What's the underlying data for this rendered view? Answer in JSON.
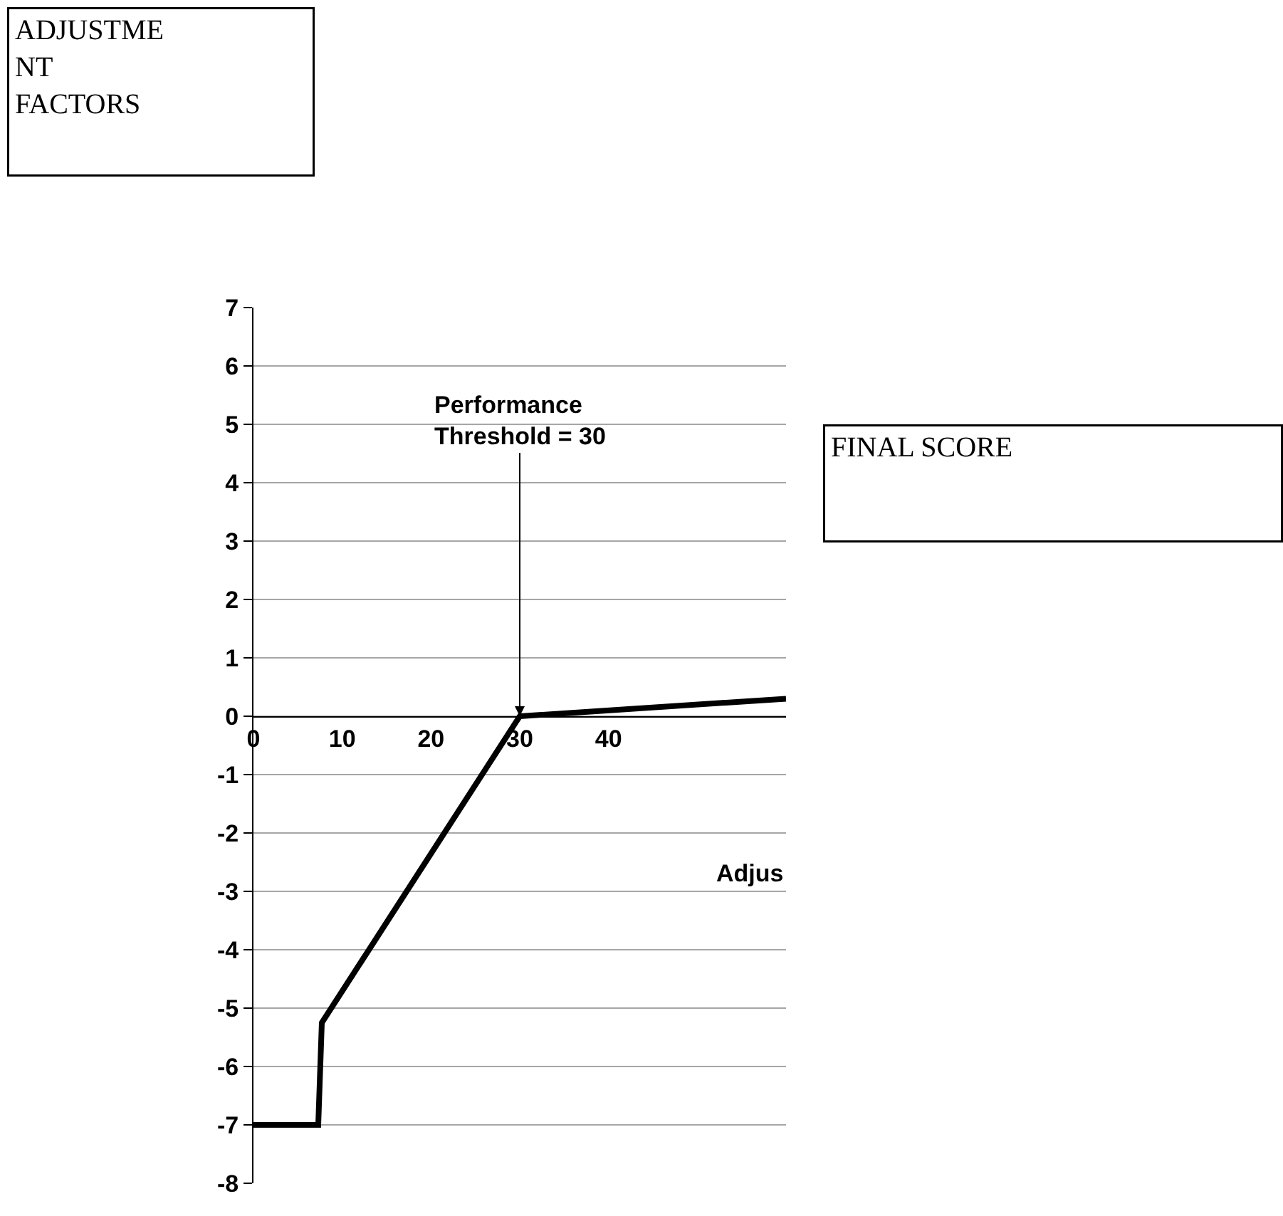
{
  "chart_data": {
    "type": "line",
    "xlabel": "Adjus",
    "x": [
      0,
      7.3,
      7.7,
      30,
      60
    ],
    "series": [
      {
        "color": "#000000",
        "values": [
          -7,
          -7,
          -5.25,
          0,
          0.3
        ]
      }
    ],
    "xlim": [
      0,
      60
    ],
    "xticks": [
      0,
      10,
      20,
      30,
      40
    ],
    "ylim": [
      -8,
      7
    ],
    "yticks": [
      -8,
      -7,
      -6,
      -5,
      -4,
      -3,
      -2,
      -1,
      0,
      1,
      2,
      3,
      4,
      5,
      6,
      7
    ],
    "grid": "y",
    "marker": "none",
    "line_style": "solid",
    "annotations": [
      "ADJUSTME\nNT\nFACTORS",
      {
        "text": "Performance\nThreshold = 30",
        "x": 30,
        "y": 0
      },
      "FINAL SCORE"
    ]
  }
}
